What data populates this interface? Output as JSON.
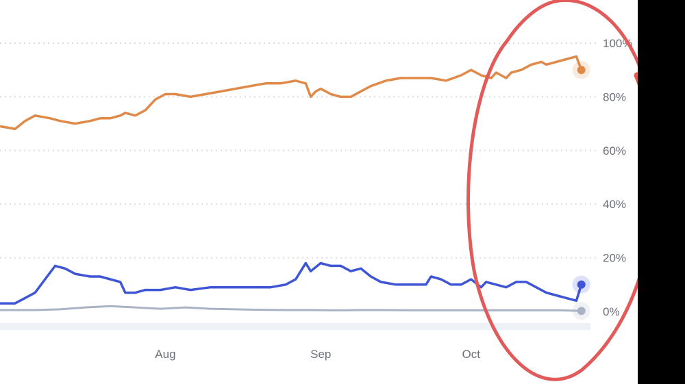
{
  "chart_data": {
    "type": "line",
    "title": "",
    "xlabel": "",
    "ylabel": "",
    "x_tick_labels": [
      "Aug",
      "Sep",
      "Oct"
    ],
    "x_tick_positions": [
      31,
      62,
      92
    ],
    "y_tick_labels": [
      "0%",
      "20%",
      "40%",
      "60%",
      "80%",
      "100%"
    ],
    "y_tick_values": [
      0,
      20,
      40,
      60,
      80,
      100
    ],
    "ylim": [
      0,
      100
    ],
    "xlim": [
      -2,
      115
    ],
    "grid": true,
    "legend": "none",
    "series": [
      {
        "color": "#e08a4a",
        "x": [
          -2,
          1,
          3,
          5,
          8,
          10,
          13,
          16,
          18,
          20,
          22,
          23,
          25,
          27,
          29,
          31,
          33,
          36,
          39,
          42,
          45,
          48,
          51,
          54,
          57,
          59,
          60,
          61,
          62,
          64,
          66,
          68,
          70,
          72,
          75,
          78,
          81,
          84,
          87,
          90,
          92,
          94,
          96,
          97,
          98,
          99,
          100,
          102,
          104,
          106,
          107,
          109,
          111,
          113,
          114
        ],
        "y": [
          69,
          68,
          71,
          73,
          72,
          71,
          70,
          71,
          72,
          72,
          73,
          74,
          73,
          75,
          79,
          81,
          81,
          80,
          81,
          82,
          83,
          84,
          85,
          85,
          86,
          85,
          80,
          82,
          83,
          81,
          80,
          80,
          82,
          84,
          86,
          87,
          87,
          87,
          86,
          88,
          90,
          88,
          87,
          89,
          88,
          87,
          89,
          90,
          92,
          93,
          92,
          93,
          94,
          95,
          90
        ],
        "end_marker": true
      },
      {
        "color": "#3e55d6",
        "x": [
          -2,
          1,
          3,
          5,
          7,
          9,
          11,
          13,
          16,
          18,
          20,
          22,
          23,
          25,
          27,
          30,
          33,
          36,
          40,
          44,
          48,
          52,
          55,
          57,
          58,
          59,
          60,
          62,
          64,
          66,
          68,
          70,
          72,
          74,
          77,
          80,
          83,
          84,
          86,
          88,
          90,
          92,
          94,
          95,
          97,
          99,
          101,
          103,
          105,
          107,
          109,
          111,
          113,
          114
        ],
        "y": [
          3,
          3,
          5,
          7,
          12,
          17,
          16,
          14,
          13,
          13,
          12,
          11,
          7,
          7,
          8,
          8,
          9,
          8,
          9,
          9,
          9,
          9,
          10,
          12,
          15,
          18,
          15,
          18,
          17,
          17,
          15,
          16,
          13,
          11,
          10,
          10,
          10,
          13,
          12,
          10,
          10,
          12,
          9,
          11,
          10,
          9,
          11,
          11,
          9,
          7,
          6,
          5,
          4,
          10
        ],
        "end_marker": true
      },
      {
        "color": "#aab3c5",
        "x": [
          -2,
          5,
          10,
          15,
          20,
          25,
          30,
          35,
          40,
          45,
          50,
          55,
          60,
          65,
          70,
          75,
          80,
          85,
          90,
          95,
          100,
          105,
          110,
          114
        ],
        "y": [
          0.5,
          0.5,
          0.8,
          1.5,
          2.0,
          1.5,
          1.0,
          1.5,
          1.0,
          0.8,
          0.6,
          0.5,
          0.5,
          0.4,
          0.5,
          0.5,
          0.4,
          0.4,
          0.4,
          0.4,
          0.4,
          0.4,
          0.4,
          0.2
        ],
        "end_marker": true
      }
    ]
  }
}
